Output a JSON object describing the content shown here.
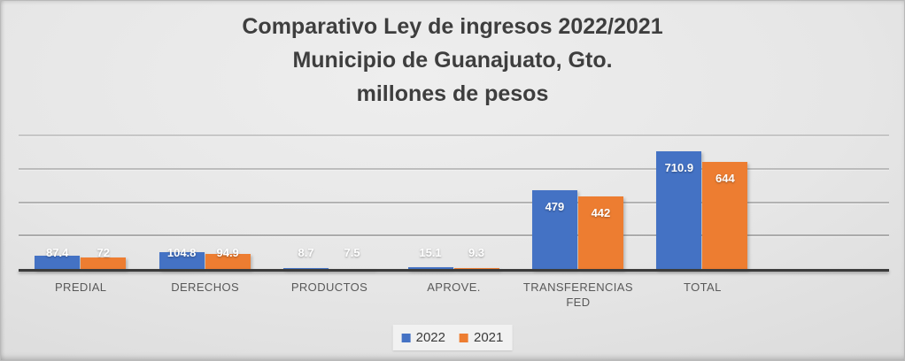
{
  "chart_data": {
    "type": "bar",
    "title": "Comparativo Ley de ingresos 2022/2021 Municipio de Guanajuato, Gto. millones de pesos",
    "title_lines": [
      "Comparativo Ley de ingresos 2022/2021",
      "Municipio de Guanajuato, Gto.",
      "millones de pesos"
    ],
    "categories": [
      "PREDIAL",
      "DERECHOS",
      "PRODUCTOS",
      "APROVE.",
      "TRANSFERENCIAS FED",
      "TOTAL"
    ],
    "series": [
      {
        "name": "2022",
        "color": "#4472C4",
        "values": [
          87.4,
          104.8,
          8.7,
          15.1,
          479,
          710.9
        ],
        "labels": [
          "87.4",
          "104.8",
          "8.7",
          "15.1",
          "479",
          "710.9"
        ]
      },
      {
        "name": "2021",
        "color": "#ED7D31",
        "values": [
          72,
          94.9,
          7.5,
          9.3,
          442,
          644
        ],
        "labels": [
          "72",
          "94.9",
          "7.5",
          "9.3",
          "442",
          "644"
        ]
      }
    ],
    "xlabel": "",
    "ylabel": "",
    "ylim": [
      0,
      800
    ],
    "gridline_interval": 200,
    "grid": true,
    "y_axis_tick_labels_visible": false,
    "data_labels": true,
    "legend_position": "bottom",
    "empty_trailing_slots": 1
  },
  "colors": {
    "series_2022": "#4472C4",
    "series_2021": "#ED7D31",
    "title_text": "#3e3e3e",
    "category_text": "#595959",
    "data_label_text": "#ffffff",
    "axis_line": "#3b3b3b",
    "gridline": "#9c9c9c",
    "legend_background": "#f1f1f1",
    "slide_background": "#dedede"
  }
}
